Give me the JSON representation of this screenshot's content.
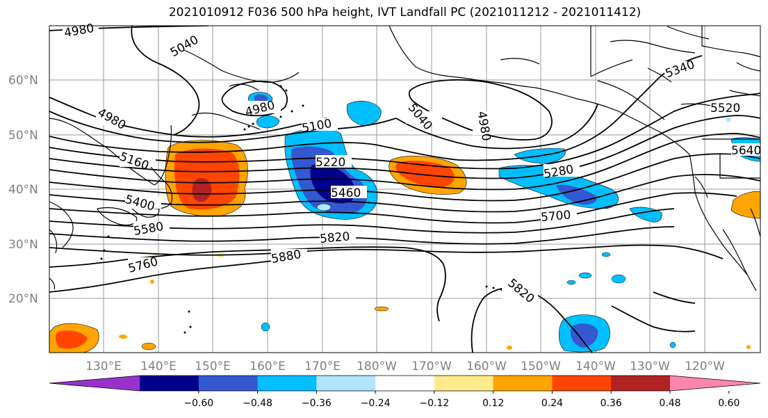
{
  "title": "2021010912 F036 500 hPa height, IVT Landfall PC (2021011212 - 2021011412)",
  "lat_labels": [
    "60°N",
    "50°N",
    "40°N",
    "30°N",
    "20°N"
  ],
  "lon_labels": [
    "130°E",
    "140°E",
    "150°E",
    "160°E",
    "170°E",
    "180°W",
    "170°W",
    "160°W",
    "150°W",
    "140°W",
    "130°W",
    "120°W"
  ],
  "contour_labels": [
    "4980",
    "5040",
    "4980",
    "4980",
    "5100",
    "5040",
    "4980",
    "5340",
    "5520",
    "5640",
    "5160",
    "5220",
    "5460",
    "5280",
    "5400",
    "5700",
    "5580",
    "5820",
    "5760",
    "5880",
    "5820"
  ],
  "colorbar": {
    "colors": [
      "#9932CC",
      "#00008B",
      "#3557CF",
      "#00BFFF",
      "#B2E5FF",
      "#FFFFFF",
      "#FFEB8A",
      "#FFA500",
      "#FF4500",
      "#B22222",
      "#FF85B0"
    ],
    "ticks": [
      "−0.60",
      "−0.48",
      "−0.36",
      "−0.24",
      "−0.12",
      "0.12",
      "0.24",
      "0.36",
      "0.48",
      "0.60"
    ]
  }
}
